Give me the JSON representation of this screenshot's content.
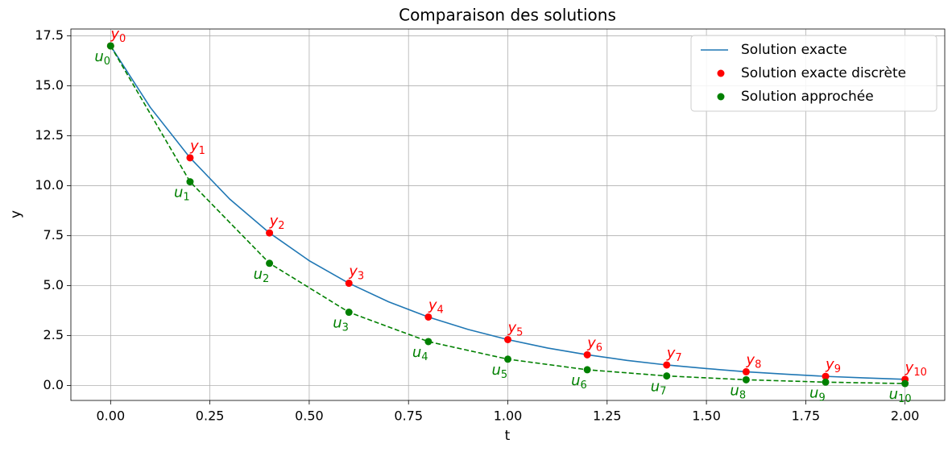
{
  "chart_data": {
    "type": "line",
    "title": "Comparaison des solutions",
    "x_label": "t",
    "y_label": "y",
    "xlim": [
      -0.1,
      2.1
    ],
    "ylim": [
      -0.745,
      17.845
    ],
    "xticks": [
      {
        "value": 0,
        "label": "0.00"
      },
      {
        "value": 0.25,
        "label": "0.25"
      },
      {
        "value": 0.5,
        "label": "0.50"
      },
      {
        "value": 0.75,
        "label": "0.75"
      },
      {
        "value": 1,
        "label": "1.00"
      },
      {
        "value": 1.25,
        "label": "1.25"
      },
      {
        "value": 1.5,
        "label": "1.50"
      },
      {
        "value": 1.75,
        "label": "1.75"
      },
      {
        "value": 2,
        "label": "2.00"
      }
    ],
    "yticks": [
      {
        "value": 0,
        "label": "0.0"
      },
      2.5,
      {
        "value": 5,
        "label": "5.0"
      },
      7.5,
      {
        "value": 10,
        "label": "10.0"
      },
      12.5,
      {
        "value": 15,
        "label": "15.0"
      },
      17.5
    ],
    "grid": true,
    "legend": "upper right",
    "series": [
      {
        "name": "Solution exacte",
        "kind": "line",
        "color": "#1f77b4",
        "x": [
          0,
          0.1,
          0.2,
          0.3,
          0.4,
          0.5,
          0.6,
          0.7,
          0.8,
          0.9,
          1.0,
          1.1,
          1.2,
          1.3,
          1.4,
          1.5,
          1.6,
          1.7,
          1.8,
          1.9,
          2.0
        ],
        "values": [
          17,
          13.92,
          11.4,
          9.33,
          7.64,
          6.25,
          5.12,
          4.19,
          3.43,
          2.81,
          2.3,
          1.88,
          1.54,
          1.26,
          1.03,
          0.85,
          0.69,
          0.57,
          0.46,
          0.38,
          0.31
        ]
      },
      {
        "name": "Solution exacte discrète",
        "kind": "scatter",
        "color": "red",
        "x": [
          0,
          0.2,
          0.4,
          0.6,
          0.8,
          1.0,
          1.2,
          1.4,
          1.6,
          1.8,
          2.0
        ],
        "values": [
          17,
          11.4,
          7.64,
          5.12,
          3.43,
          2.3,
          1.54,
          1.03,
          0.69,
          0.46,
          0.31
        ],
        "label_symbol": "y",
        "label_subscripts": [
          "0",
          "1",
          "2",
          "3",
          "4",
          "5",
          "6",
          "7",
          "8",
          "9",
          "10"
        ],
        "label_position": "above"
      },
      {
        "name": "Solution approchée",
        "kind": "scatter",
        "color": "green",
        "connect": "dashed",
        "x": [
          0,
          0.2,
          0.4,
          0.6,
          0.8,
          1.0,
          1.2,
          1.4,
          1.6,
          1.8,
          2.0
        ],
        "values": [
          17,
          10.2,
          6.12,
          3.67,
          2.2,
          1.32,
          0.79,
          0.48,
          0.29,
          0.17,
          0.1
        ],
        "label_symbol": "u",
        "label_subscripts": [
          "0",
          "1",
          "2",
          "3",
          "4",
          "5",
          "6",
          "7",
          "8",
          "9",
          "10"
        ],
        "label_position": "below"
      }
    ]
  }
}
